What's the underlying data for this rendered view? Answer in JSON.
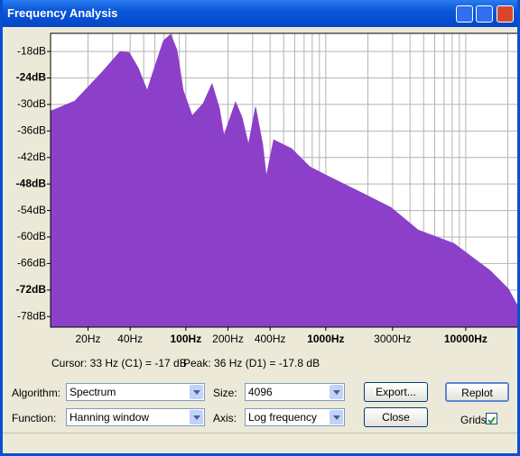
{
  "window": {
    "title": "Frequency Analysis"
  },
  "chart_data": {
    "type": "area",
    "x": [
      10.8,
      16.1,
      25.2,
      33.9,
      39.3,
      45.7,
      52.9,
      59.6,
      69.1,
      77.9,
      86.4,
      95.8,
      111,
      133,
      154,
      174,
      187,
      227,
      252,
      280,
      315,
      354,
      376,
      424,
      570,
      768,
      1034,
      1870,
      2920,
      4570,
      8270,
      14980,
      20150,
      23700
    ],
    "values": [
      -31.5,
      -29.2,
      -22.7,
      -18.0,
      -18.2,
      -21.7,
      -26.8,
      -21.7,
      -15.6,
      -14.1,
      -17.6,
      -26.8,
      -32.5,
      -29.8,
      -25.3,
      -30.9,
      -37.0,
      -29.4,
      -32.9,
      -39.0,
      -30.5,
      -39.0,
      -46.2,
      -38.0,
      -40.0,
      -44.1,
      -46.2,
      -50.2,
      -53.3,
      -58.4,
      -61.5,
      -67.6,
      -71.7,
      -75.8
    ],
    "color": "#8c3fc8",
    "xscale": "log",
    "xlim": [
      10.8,
      23700
    ],
    "ylim": [
      -80.4,
      -13.9
    ],
    "xticks": [
      {
        "value": 20,
        "label": "20Hz"
      },
      {
        "value": 40,
        "label": "40Hz"
      },
      {
        "value": 100,
        "label": "100Hz"
      },
      {
        "value": 200,
        "label": "200Hz"
      },
      {
        "value": 400,
        "label": "400Hz"
      },
      {
        "value": 1000,
        "label": "1000Hz"
      },
      {
        "value": 3000,
        "label": "3000Hz"
      },
      {
        "value": 10000,
        "label": "10000Hz"
      }
    ],
    "xgrid": [
      20,
      30,
      40,
      50,
      60,
      70,
      80,
      90,
      100,
      200,
      300,
      400,
      500,
      600,
      700,
      800,
      900,
      1000,
      2000,
      3000,
      4000,
      5000,
      6000,
      7000,
      8000,
      9000,
      10000,
      20000
    ],
    "yticks": [
      {
        "value": -18,
        "label": "-18dB"
      },
      {
        "value": -24,
        "label": "-24dB"
      },
      {
        "value": -30,
        "label": "-30dB"
      },
      {
        "value": -36,
        "label": "-36dB"
      },
      {
        "value": -42,
        "label": "-42dB"
      },
      {
        "value": -48,
        "label": "-48dB"
      },
      {
        "value": -54,
        "label": "-54dB"
      },
      {
        "value": -60,
        "label": "-60dB"
      },
      {
        "value": -66,
        "label": "-66dB"
      },
      {
        "value": -72,
        "label": "-72dB"
      },
      {
        "value": -78,
        "label": "-78dB"
      }
    ],
    "grid": true
  },
  "status": {
    "cursor": "Cursor: 33 Hz (C1) = -17 dB",
    "peak": "Peak: 36 Hz (D1) = -17.8 dB"
  },
  "controls": {
    "algorithm": {
      "label": "Algorithm:",
      "value": "Spectrum"
    },
    "size": {
      "label": "Size:",
      "value": "4096"
    },
    "function": {
      "label": "Function:",
      "value": "Hanning window"
    },
    "axis": {
      "label": "Axis:",
      "value": "Log frequency"
    },
    "export": "Export...",
    "replot": "Replot",
    "close": "Close",
    "grids": {
      "label": "Grids",
      "checked": true
    }
  }
}
